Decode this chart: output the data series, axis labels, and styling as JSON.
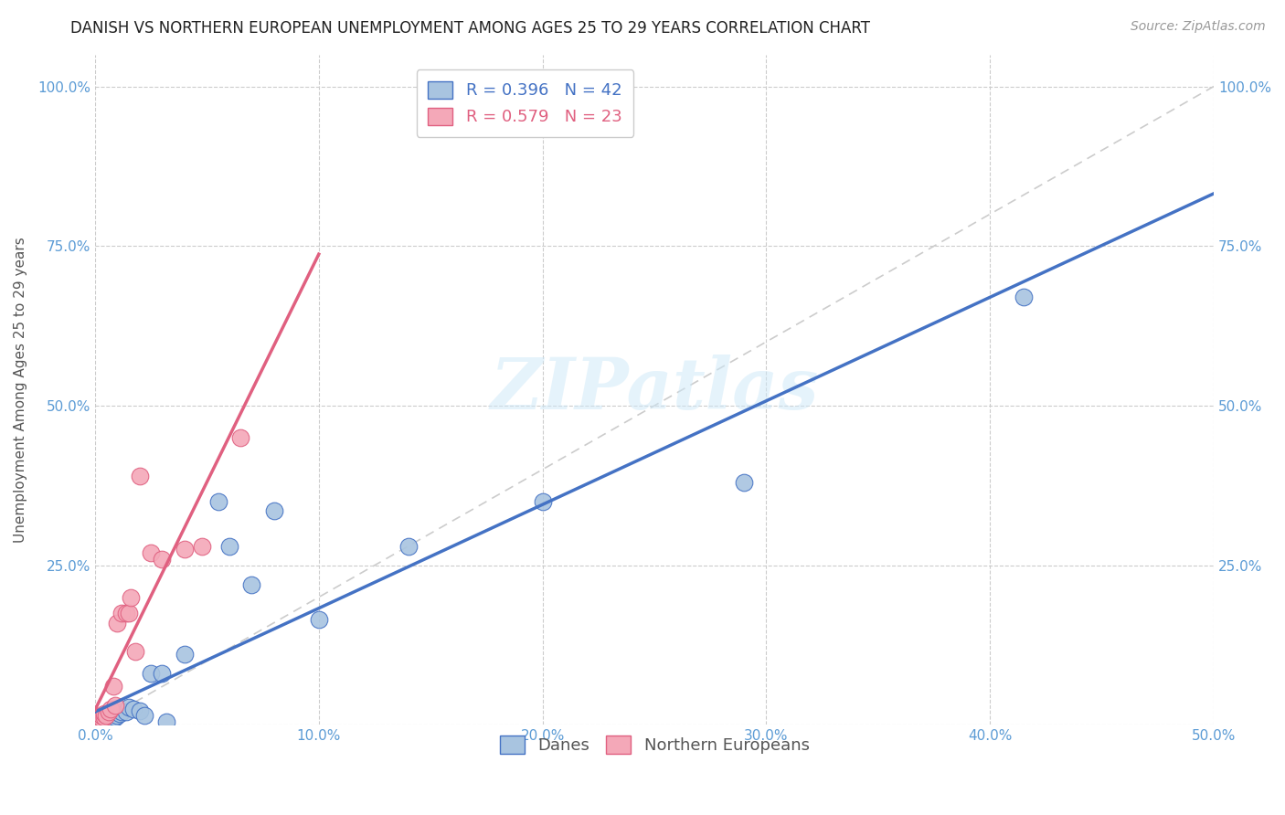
{
  "title": "DANISH VS NORTHERN EUROPEAN UNEMPLOYMENT AMONG AGES 25 TO 29 YEARS CORRELATION CHART",
  "source": "Source: ZipAtlas.com",
  "ylabel": "Unemployment Among Ages 25 to 29 years",
  "xlim": [
    0.0,
    0.5
  ],
  "ylim": [
    0.0,
    1.05
  ],
  "xticks": [
    0.0,
    0.1,
    0.2,
    0.3,
    0.4,
    0.5
  ],
  "yticks": [
    0.0,
    0.25,
    0.5,
    0.75,
    1.0
  ],
  "xticklabels": [
    "0.0%",
    "10.0%",
    "20.0%",
    "30.0%",
    "40.0%",
    "50.0%"
  ],
  "yticklabels": [
    "",
    "25.0%",
    "50.0%",
    "75.0%",
    "100.0%"
  ],
  "danes_R": 0.396,
  "danes_N": 42,
  "norths_R": 0.579,
  "norths_N": 23,
  "danes_color": "#a8c4e0",
  "norths_color": "#f4a8b8",
  "danes_line_color": "#4472c4",
  "norths_line_color": "#e06080",
  "danes_x": [
    0.001,
    0.001,
    0.002,
    0.002,
    0.002,
    0.003,
    0.003,
    0.003,
    0.004,
    0.004,
    0.004,
    0.005,
    0.005,
    0.005,
    0.006,
    0.006,
    0.007,
    0.007,
    0.008,
    0.008,
    0.009,
    0.01,
    0.011,
    0.012,
    0.014,
    0.015,
    0.017,
    0.02,
    0.022,
    0.025,
    0.03,
    0.032,
    0.04,
    0.055,
    0.06,
    0.07,
    0.08,
    0.1,
    0.14,
    0.2,
    0.29,
    0.415
  ],
  "danes_y": [
    0.01,
    0.008,
    0.01,
    0.008,
    0.012,
    0.01,
    0.012,
    0.008,
    0.01,
    0.012,
    0.008,
    0.01,
    0.015,
    0.012,
    0.013,
    0.01,
    0.015,
    0.012,
    0.015,
    0.01,
    0.012,
    0.015,
    0.018,
    0.02,
    0.02,
    0.028,
    0.025,
    0.022,
    0.015,
    0.08,
    0.08,
    0.005,
    0.11,
    0.35,
    0.28,
    0.22,
    0.335,
    0.165,
    0.28,
    0.35,
    0.38,
    0.67
  ],
  "norths_x": [
    0.001,
    0.002,
    0.003,
    0.003,
    0.004,
    0.004,
    0.005,
    0.006,
    0.007,
    0.008,
    0.009,
    0.01,
    0.012,
    0.014,
    0.015,
    0.016,
    0.018,
    0.02,
    0.025,
    0.03,
    0.04,
    0.048,
    0.065
  ],
  "norths_y": [
    0.005,
    0.01,
    0.01,
    0.015,
    0.012,
    0.018,
    0.015,
    0.02,
    0.025,
    0.06,
    0.03,
    0.16,
    0.175,
    0.175,
    0.175,
    0.2,
    0.115,
    0.39,
    0.27,
    0.26,
    0.275,
    0.28,
    0.45
  ],
  "background_color": "#ffffff",
  "watermark": "ZIPatlas",
  "title_fontsize": 12,
  "axis_label_fontsize": 11,
  "tick_fontsize": 11,
  "legend_fontsize": 13,
  "source_fontsize": 10
}
